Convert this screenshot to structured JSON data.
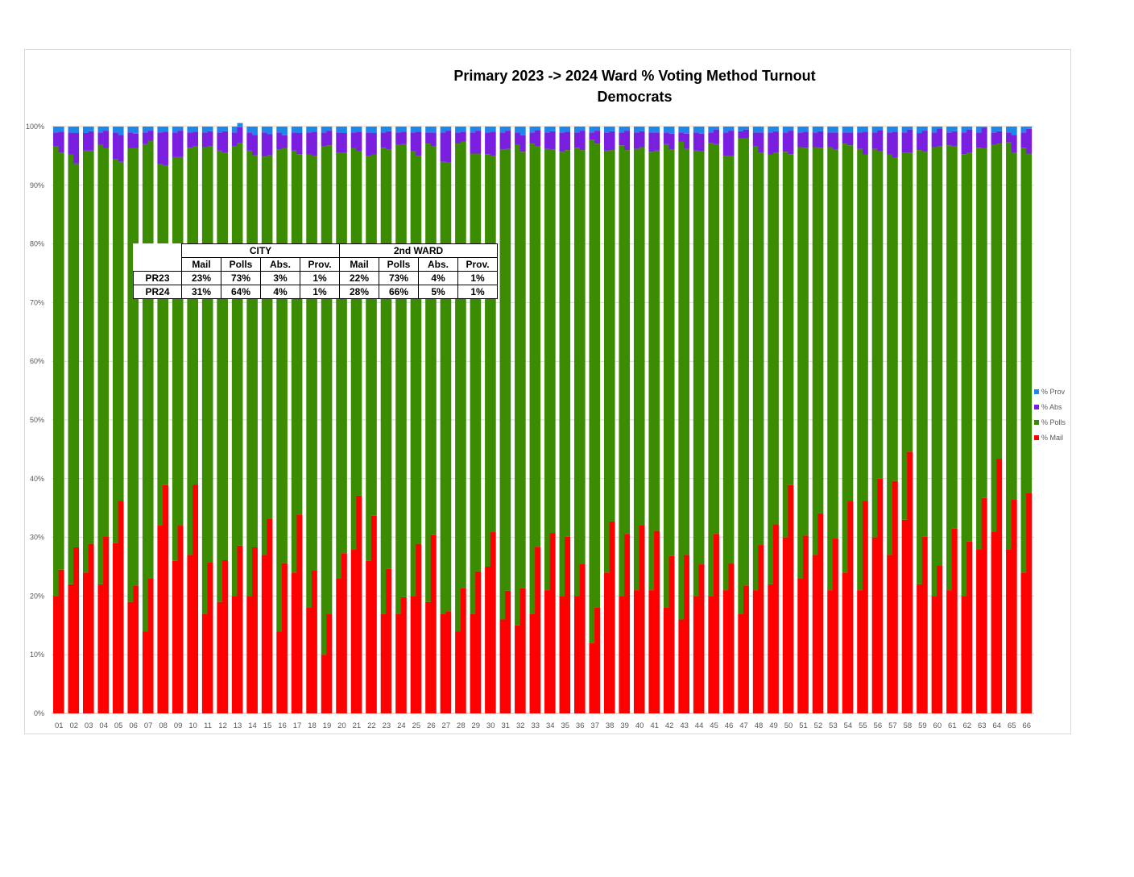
{
  "chart_data": {
    "type": "bar",
    "stacked": true,
    "title": "Primary 2023 -> 2024 Ward % Voting Method Turnout",
    "subtitle": "Democrats",
    "y_ticks": [
      "0%",
      "10%",
      "20%",
      "30%",
      "40%",
      "50%",
      "60%",
      "70%",
      "80%",
      "90%",
      "100%"
    ],
    "ylim": [
      0,
      100
    ],
    "grid": true,
    "legend_position": "right",
    "categories": [
      "01",
      "02",
      "03",
      "04",
      "05",
      "06",
      "07",
      "08",
      "09",
      "10",
      "11",
      "12",
      "13",
      "14",
      "15",
      "16",
      "17",
      "18",
      "19",
      "20",
      "21",
      "22",
      "23",
      "24",
      "25",
      "26",
      "27",
      "28",
      "29",
      "30",
      "31",
      "32",
      "33",
      "34",
      "35",
      "36",
      "37",
      "38",
      "39",
      "40",
      "41",
      "42",
      "43",
      "44",
      "45",
      "46",
      "47",
      "48",
      "49",
      "50",
      "51",
      "52",
      "53",
      "54",
      "55",
      "56",
      "57",
      "58",
      "59",
      "60",
      "61",
      "62",
      "63",
      "64",
      "65",
      "66"
    ],
    "bars_per_category": [
      "PR23",
      "PR24"
    ],
    "series": [
      {
        "name": "% Mail",
        "color": "#ff0000",
        "values_pr23": [
          20,
          22,
          24,
          22,
          29,
          19,
          14,
          32,
          26,
          27,
          17,
          19,
          20,
          20,
          27,
          14,
          24,
          18,
          10,
          23,
          28,
          26,
          17,
          17,
          20,
          19,
          17,
          14,
          17,
          25,
          16,
          15,
          17,
          21,
          20,
          20,
          12,
          24,
          20,
          21,
          21,
          18,
          16,
          20,
          20,
          21,
          17,
          21,
          22,
          30,
          23,
          27,
          21,
          24,
          21,
          30,
          27,
          33,
          22,
          20,
          21,
          20,
          28,
          31,
          28,
          24
        ],
        "values_pr24": [
          24.5,
          28.3,
          28.9,
          30.2,
          36.2,
          21.8,
          23,
          38.9,
          32,
          39,
          25.8,
          26.1,
          28.6,
          28.3,
          33.2,
          25.6,
          33.9,
          24.4,
          17,
          27.3,
          37.1,
          33.7,
          24.6,
          19.8,
          28.9,
          30.4,
          17.4,
          21.4,
          24.2,
          30.9,
          20.9,
          21.3,
          28.4,
          30.7,
          30.1,
          25.5,
          18,
          32.7,
          30.6,
          32.1,
          31.1,
          26.8,
          27,
          25.4,
          30.6,
          25.6,
          21.8,
          28.7,
          32.2,
          38.9,
          30.3,
          34.1,
          29.8,
          36.2,
          36.2,
          40,
          39.6,
          44.6,
          30.1,
          25.2,
          31.5,
          29.3,
          36.7,
          43.4,
          36.5,
          37.6
        ]
      },
      {
        "name": "% Polls",
        "color": "#3b8c00",
        "values_pr23": [
          76.6,
          73.2,
          71.9,
          74.9,
          65.5,
          77.3,
          83,
          61.6,
          68.8,
          69.4,
          79.5,
          76.9,
          76.6,
          75.9,
          67.9,
          82.1,
          71.9,
          77.2,
          86.6,
          72.5,
          68.3,
          69,
          79.4,
          79.9,
          75.8,
          78.1,
          77,
          83.1,
          78.4,
          70.3,
          80.1,
          81.9,
          80.1,
          75.2,
          75.7,
          76.4,
          85.7,
          71.9,
          76.8,
          75.2,
          74.7,
          79,
          81.4,
          75.9,
          77.2,
          74,
          81,
          75.6,
          73.2,
          65.7,
          73.5,
          69.5,
          75.5,
          73.1,
          75.2,
          66.2,
          68.2,
          62.5,
          74,
          76.5,
          75.8,
          75.3,
          68.4,
          65.9,
          69.3,
          72.4
        ],
        "values_pr24": [
          71,
          65.4,
          67,
          66.1,
          57.8,
          74.5,
          74.6,
          54.5,
          62.8,
          57.6,
          70.9,
          69.5,
          68.6,
          66.8,
          61.9,
          70.7,
          61.4,
          70.6,
          79.8,
          68.2,
          58.7,
          61.5,
          71.5,
          77.2,
          66.1,
          66.3,
          76.5,
          76,
          71.2,
          64.1,
          75.3,
          74.4,
          68.2,
          65.4,
          65.9,
          70.5,
          79.1,
          63.3,
          65.4,
          64.4,
          64.8,
          69.3,
          69.2,
          70.4,
          66.4,
          69.4,
          76.2,
          66.8,
          63.3,
          56.4,
          66.1,
          62.3,
          66.3,
          60.6,
          59,
          55.8,
          55.1,
          50.9,
          65.6,
          71.4,
          65.1,
          66.3,
          59.6,
          53.7,
          59.1,
          57.8
        ]
      },
      {
        "name": "% Abs",
        "color": "#7a1fe0",
        "values_pr23": [
          2.4,
          3.8,
          3,
          2.1,
          4.5,
          2.7,
          2,
          5.4,
          4.2,
          2.6,
          2.5,
          3.1,
          2.4,
          3.1,
          4.1,
          2.9,
          3.1,
          3.8,
          2.4,
          3.5,
          2.7,
          4,
          2.6,
          2.1,
          3.2,
          1.9,
          5,
          1.9,
          3.6,
          3.7,
          2.9,
          2.1,
          1.9,
          2.8,
          3.3,
          2.6,
          1.3,
          3.1,
          2.2,
          2.8,
          3.3,
          2,
          1.6,
          3.1,
          1.8,
          4,
          1.2,
          2.4,
          3.8,
          3.3,
          2.5,
          2.5,
          2.5,
          1.9,
          2.8,
          2.8,
          3.8,
          3.5,
          2.9,
          2.5,
          2.2,
          3.7,
          2.6,
          2.1,
          1.7,
          2.6
        ],
        "values_pr24": [
          3.6,
          5.2,
          3.3,
          3,
          4.6,
          2.5,
          1.7,
          5.7,
          4.5,
          2.5,
          2.5,
          3.6,
          2.7,
          3.5,
          3.6,
          2.2,
          3.6,
          4.1,
          2.5,
          3.4,
          3.3,
          3.7,
          3.1,
          2.1,
          4.1,
          2.3,
          5.4,
          1.7,
          3.9,
          4.1,
          3.1,
          2.8,
          2.8,
          3.1,
          3.1,
          3.3,
          2.2,
          3.2,
          3.3,
          2.7,
          3.1,
          2.7,
          2.6,
          3,
          2.5,
          4.3,
          1.5,
          3.5,
          3.7,
          4,
          2.7,
          2.8,
          2.9,
          2.2,
          3.9,
          3.6,
          4.4,
          4,
          3.6,
          3.1,
          2.6,
          3.9,
          3.5,
          2.1,
          3,
          4.2
        ]
      },
      {
        "name": "% Prov",
        "color": "#1e88e8",
        "values_pr23": [
          1,
          1,
          1.1,
          1,
          1,
          1,
          1,
          1,
          1,
          1,
          1,
          1,
          1,
          1,
          1,
          1,
          1,
          1,
          1,
          1,
          1,
          1,
          1,
          1,
          1,
          1,
          1,
          1,
          1,
          1,
          1,
          1,
          1,
          1,
          1,
          1,
          1,
          1,
          1,
          1,
          1,
          1,
          1,
          1,
          1,
          1,
          0.8,
          1,
          1,
          1,
          1,
          1,
          1,
          1,
          1,
          1,
          1,
          1,
          1.1,
          1,
          1,
          1,
          1,
          1,
          1,
          1
        ],
        "values_pr24": [
          0.9,
          1.1,
          0.8,
          0.7,
          1.4,
          1.2,
          0.7,
          0.9,
          0.7,
          0.9,
          0.8,
          0.8,
          0.7,
          1.4,
          1.3,
          1.5,
          1.1,
          0.9,
          0.7,
          1.1,
          0.9,
          1.1,
          0.8,
          0.9,
          0.9,
          1,
          0.7,
          0.9,
          0.7,
          0.9,
          0.7,
          1.5,
          0.6,
          0.8,
          0.9,
          0.7,
          0.7,
          0.8,
          0.7,
          0.8,
          1,
          1.2,
          1.2,
          1.2,
          0.5,
          0.7,
          0.5,
          1,
          0.8,
          0.7,
          0.9,
          0.8,
          1,
          1,
          0.9,
          0.6,
          0.9,
          0.5,
          0.7,
          0.3,
          0.8,
          0.5,
          0.2,
          0.8,
          1.4,
          0.4
        ]
      }
    ],
    "legend": [
      {
        "label": "% Prov",
        "color": "#1e88e8"
      },
      {
        "label": "% Abs",
        "color": "#7a1fe0"
      },
      {
        "label": "% Polls",
        "color": "#3b8c00"
      },
      {
        "label": "% Mail",
        "color": "#ff0000"
      }
    ],
    "summary_table": {
      "groups": [
        "CITY",
        "2nd WARD"
      ],
      "columns": [
        "Mail",
        "Polls",
        "Abs.",
        "Prov.",
        "Mail",
        "Polls",
        "Abs.",
        "Prov."
      ],
      "rows": [
        {
          "label": "PR23",
          "values": [
            "23%",
            "73%",
            "3%",
            "1%",
            "22%",
            "73%",
            "4%",
            "1%"
          ]
        },
        {
          "label": "PR24",
          "values": [
            "31%",
            "64%",
            "4%",
            "1%",
            "28%",
            "66%",
            "5%",
            "1%"
          ]
        }
      ]
    }
  }
}
